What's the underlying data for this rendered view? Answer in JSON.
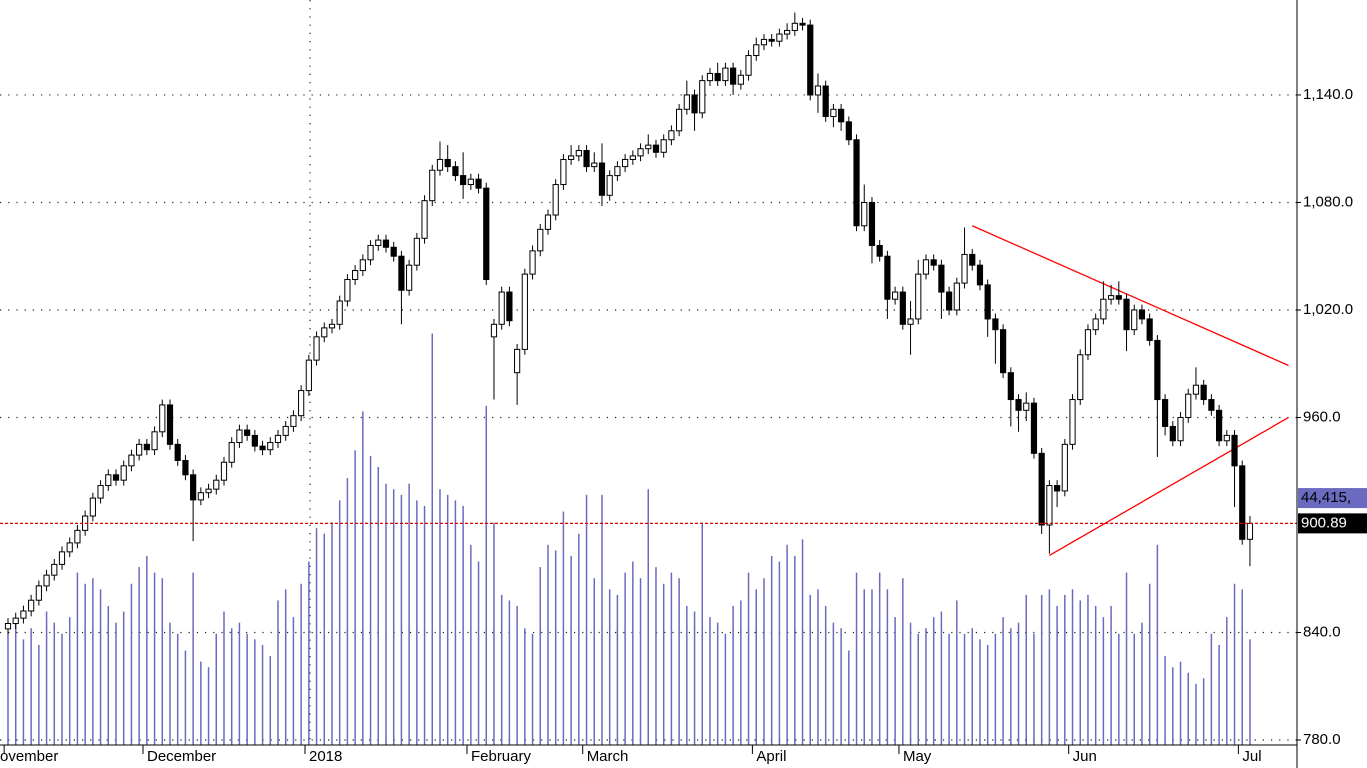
{
  "chart_data": {
    "type": "candlestick",
    "categories": [
      "ovember",
      null,
      null,
      null,
      null,
      null,
      null,
      null,
      null,
      null,
      null,
      null,
      null,
      null,
      null,
      null,
      null,
      null,
      "December",
      null,
      null,
      null,
      null,
      null,
      null,
      null,
      null,
      null,
      null,
      null,
      null,
      null,
      null,
      null,
      null,
      null,
      null,
      null,
      null,
      "2018",
      null,
      null,
      null,
      null,
      null,
      null,
      null,
      null,
      null,
      null,
      null,
      null,
      null,
      null,
      null,
      null,
      null,
      null,
      null,
      null,
      "February",
      null,
      null,
      null,
      null,
      null,
      null,
      null,
      null,
      null,
      null,
      null,
      null,
      null,
      null,
      "March",
      null,
      null,
      null,
      null,
      null,
      null,
      null,
      null,
      null,
      null,
      null,
      null,
      null,
      null,
      null,
      null,
      null,
      null,
      null,
      null,
      null,
      "April",
      null,
      null,
      null,
      null,
      null,
      null,
      null,
      null,
      null,
      null,
      null,
      null,
      null,
      null,
      null,
      null,
      null,
      null,
      "May",
      null,
      null,
      null,
      null,
      null,
      null,
      null,
      null,
      null,
      null,
      null,
      null,
      null,
      null,
      null,
      null,
      null,
      null,
      null,
      null,
      null,
      "Jun",
      null,
      null,
      null,
      null,
      null,
      null,
      null,
      null,
      null,
      null,
      null,
      null,
      null,
      null,
      null,
      null,
      null,
      null,
      null,
      null,
      null,
      "Jul",
      null
    ],
    "open": [
      842,
      845,
      848,
      852,
      858,
      866,
      872,
      878,
      885,
      890,
      897,
      905,
      915,
      922,
      928,
      925,
      933,
      939,
      945,
      942,
      952,
      967,
      945,
      936,
      928,
      914,
      918,
      920,
      925,
      935,
      946,
      953,
      950,
      944,
      942,
      946,
      950,
      955,
      961,
      975,
      992,
      1005,
      1010,
      1012,
      1025,
      1037,
      1042,
      1048,
      1056,
      1059,
      1055,
      1050,
      1031,
      1045,
      1060,
      1081,
      1098,
      1104,
      1100,
      1095,
      1090,
      1093,
      1088,
      1005,
      1012,
      1030,
      985,
      998,
      1040,
      1053,
      1065,
      1073,
      1090,
      1104,
      1106,
      1109,
      1100,
      1102,
      1084,
      1095,
      1100,
      1104,
      1106,
      1110,
      1112,
      1108,
      1115,
      1120,
      1132,
      1140,
      1130,
      1148,
      1152,
      1148,
      1155,
      1146,
      1151,
      1162,
      1168,
      1171,
      1170,
      1174,
      1176,
      1180,
      1179,
      1140,
      1145,
      1128,
      1132,
      1125,
      1115,
      1067,
      1080,
      1056,
      1050,
      1026,
      1030,
      1012,
      1015,
      1040,
      1048,
      1045,
      1030,
      1020,
      1035,
      1051,
      1045,
      1034,
      1015,
      1009,
      985,
      970,
      964,
      968,
      940,
      900,
      922,
      919,
      945,
      970,
      995,
      1009,
      1015,
      1026,
      1028,
      1026,
      1009,
      1020,
      1015,
      1003,
      970,
      955,
      947,
      960,
      973,
      978,
      970,
      964,
      947,
      950,
      933,
      892
    ],
    "high": [
      848,
      851,
      855,
      861,
      869,
      875,
      881,
      888,
      893,
      900,
      908,
      918,
      925,
      931,
      931,
      936,
      942,
      948,
      948,
      955,
      970,
      970,
      948,
      939,
      931,
      921,
      923,
      928,
      938,
      949,
      956,
      956,
      953,
      947,
      949,
      953,
      958,
      964,
      978,
      995,
      1008,
      1013,
      1015,
      1028,
      1040,
      1045,
      1051,
      1059,
      1062,
      1062,
      1058,
      1053,
      1048,
      1063,
      1084,
      1101,
      1114,
      1112,
      1103,
      1108,
      1096,
      1096,
      1091,
      1015,
      1033,
      1033,
      1001,
      1043,
      1056,
      1068,
      1076,
      1093,
      1107,
      1112,
      1112,
      1112,
      1108,
      1113,
      1098,
      1103,
      1107,
      1109,
      1113,
      1118,
      1115,
      1118,
      1123,
      1135,
      1148,
      1143,
      1151,
      1155,
      1158,
      1158,
      1158,
      1154,
      1165,
      1172,
      1174,
      1174,
      1177,
      1180,
      1186,
      1183,
      1182,
      1152,
      1148,
      1135,
      1135,
      1128,
      1118,
      1090,
      1083,
      1059,
      1053,
      1033,
      1033,
      1025,
      1048,
      1051,
      1051,
      1048,
      1033,
      1038,
      1066,
      1054,
      1048,
      1037,
      1018,
      1012,
      988,
      973,
      974,
      971,
      943,
      925,
      925,
      948,
      973,
      998,
      1012,
      1018,
      1036,
      1034,
      1036,
      1029,
      1023,
      1023,
      1018,
      1006,
      973,
      958,
      963,
      976,
      988,
      981,
      973,
      967,
      953,
      953,
      936,
      905
    ],
    "low": [
      839,
      842,
      845,
      849,
      855,
      863,
      869,
      875,
      882,
      887,
      894,
      902,
      912,
      919,
      922,
      922,
      930,
      936,
      939,
      939,
      949,
      942,
      933,
      925,
      891,
      911,
      915,
      917,
      922,
      932,
      943,
      947,
      941,
      939,
      939,
      943,
      947,
      952,
      958,
      972,
      989,
      1002,
      1007,
      1009,
      1022,
      1034,
      1039,
      1045,
      1053,
      1052,
      1047,
      1012,
      1028,
      1042,
      1057,
      1078,
      1095,
      1097,
      1092,
      1082,
      1087,
      1085,
      1034,
      970,
      1009,
      1011,
      967,
      995,
      1037,
      1050,
      1062,
      1070,
      1087,
      1101,
      1103,
      1097,
      1097,
      1078,
      1081,
      1092,
      1097,
      1101,
      1103,
      1107,
      1105,
      1105,
      1112,
      1117,
      1129,
      1120,
      1127,
      1145,
      1145,
      1145,
      1140,
      1143,
      1148,
      1159,
      1165,
      1167,
      1167,
      1171,
      1173,
      1176,
      1137,
      1130,
      1125,
      1122,
      1120,
      1112,
      1064,
      1064,
      1046,
      1047,
      1015,
      1023,
      1009,
      995,
      1012,
      1037,
      1042,
      1015,
      1017,
      1017,
      1032,
      1042,
      1031,
      1005,
      990,
      982,
      955,
      952,
      958,
      937,
      895,
      884,
      910,
      916,
      942,
      967,
      992,
      1006,
      1012,
      1023,
      1023,
      997,
      1006,
      1012,
      1000,
      938,
      950,
      944,
      944,
      957,
      970,
      967,
      961,
      944,
      944,
      910,
      889,
      877
    ],
    "close": [
      845,
      848,
      852,
      858,
      866,
      872,
      878,
      885,
      890,
      897,
      905,
      915,
      922,
      928,
      925,
      933,
      939,
      945,
      942,
      952,
      967,
      945,
      936,
      928,
      914,
      918,
      920,
      925,
      935,
      946,
      953,
      950,
      944,
      942,
      946,
      950,
      955,
      961,
      975,
      992,
      1005,
      1010,
      1012,
      1025,
      1037,
      1042,
      1048,
      1056,
      1059,
      1055,
      1050,
      1031,
      1045,
      1060,
      1081,
      1098,
      1104,
      1100,
      1095,
      1090,
      1093,
      1088,
      1037,
      1012,
      1030,
      1014,
      998,
      1040,
      1053,
      1065,
      1073,
      1090,
      1104,
      1106,
      1109,
      1100,
      1102,
      1084,
      1095,
      1100,
      1104,
      1106,
      1110,
      1112,
      1108,
      1115,
      1120,
      1132,
      1140,
      1130,
      1148,
      1152,
      1148,
      1155,
      1146,
      1151,
      1162,
      1168,
      1171,
      1170,
      1174,
      1176,
      1180,
      1179,
      1140,
      1145,
      1128,
      1132,
      1125,
      1115,
      1067,
      1080,
      1056,
      1050,
      1026,
      1030,
      1012,
      1015,
      1040,
      1048,
      1045,
      1030,
      1020,
      1035,
      1051,
      1045,
      1034,
      1015,
      1009,
      985,
      970,
      964,
      968,
      940,
      900,
      922,
      919,
      945,
      970,
      995,
      1009,
      1015,
      1026,
      1028,
      1026,
      1009,
      1020,
      1015,
      1003,
      970,
      955,
      947,
      960,
      973,
      978,
      970,
      964,
      947,
      950,
      933,
      892,
      900.89
    ],
    "volume": [
      20000,
      22000,
      19000,
      21000,
      18000,
      24000,
      22000,
      20000,
      23000,
      31000,
      29000,
      30000,
      28000,
      25000,
      22000,
      24000,
      29000,
      32000,
      34000,
      31000,
      30000,
      22000,
      20000,
      17000,
      31000,
      15000,
      14000,
      20000,
      24000,
      21000,
      22000,
      20000,
      19000,
      18000,
      16000,
      26000,
      28000,
      23000,
      29000,
      33000,
      39000,
      38000,
      40000,
      44000,
      48000,
      53000,
      60000,
      52000,
      50000,
      47000,
      46000,
      45000,
      47000,
      44000,
      43000,
      74000,
      46000,
      45000,
      44000,
      43000,
      36000,
      33000,
      61000,
      40000,
      27000,
      26000,
      25000,
      21000,
      20000,
      32000,
      36000,
      35000,
      42000,
      34000,
      38000,
      45000,
      30000,
      45000,
      28000,
      27000,
      31000,
      33000,
      30000,
      46000,
      32000,
      29000,
      31000,
      30000,
      25000,
      24000,
      40000,
      23000,
      22000,
      20000,
      25000,
      26000,
      31000,
      28000,
      30000,
      34000,
      33000,
      36000,
      34000,
      37000,
      27000,
      28000,
      25000,
      22000,
      21000,
      17000,
      31000,
      28000,
      28000,
      31000,
      28000,
      23000,
      30000,
      22000,
      20000,
      21000,
      23000,
      24000,
      20000,
      26000,
      20000,
      21000,
      19000,
      18000,
      20000,
      23000,
      21000,
      22000,
      27000,
      20000,
      27000,
      28000,
      25000,
      27000,
      28000,
      26000,
      27000,
      25000,
      23000,
      25000,
      20000,
      31000,
      20000,
      22000,
      29000,
      36000,
      16000,
      14000,
      15000,
      13000,
      11000,
      12000,
      20000,
      18000,
      23000,
      29000,
      28000,
      19000
    ],
    "volume_label": {
      "value": 44415,
      "label": "44,415,"
    },
    "volume_lim": [
      0,
      134000
    ],
    "ylim": [
      777.2,
      1193
    ],
    "yticks": [
      {
        "value": 780,
        "label": "780.0"
      },
      {
        "value": 840,
        "label": "840.0"
      },
      {
        "value": 960,
        "label": "960.0"
      },
      {
        "value": 1020,
        "label": "1,020.0"
      },
      {
        "value": 1080,
        "label": "1,080.0"
      },
      {
        "value": 1140,
        "label": "1,140.0"
      }
    ],
    "grid": true,
    "up_color": "#ffffff",
    "down_color": "#000000",
    "volume_color": "#6a6ac0",
    "last_price_line": true,
    "last_price_color": "#e00000",
    "trendlines": [
      {
        "x": [
          125,
          166
        ],
        "y": [
          1067,
          989
        ],
        "color": "#ff0000"
      },
      {
        "x": [
          135,
          166
        ],
        "y": [
          883,
          960
        ],
        "color": "#ff0000"
      }
    ]
  }
}
